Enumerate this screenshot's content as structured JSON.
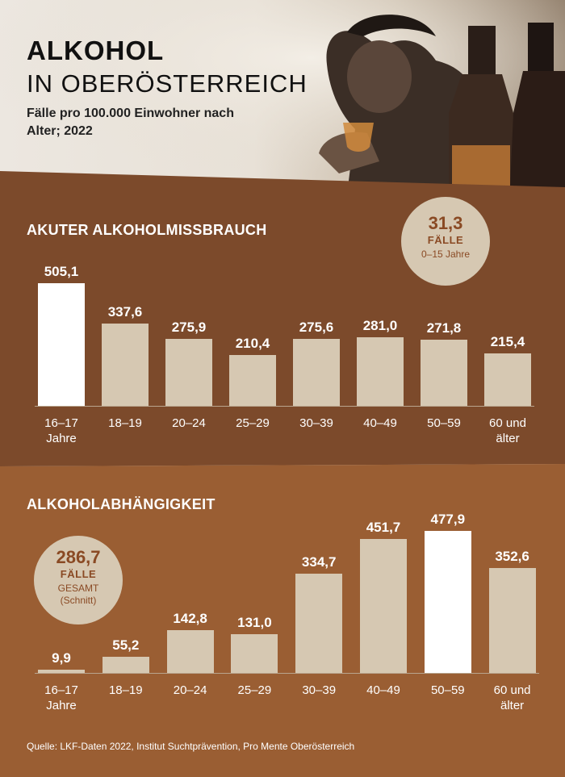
{
  "header": {
    "title_line1": "ALKOHOL",
    "title_line2": "IN OBERÖSTERREICH",
    "subtitle": "Fälle pro 100.000 Einwohner nach Alter; 2022"
  },
  "colors": {
    "band_dark": "#7c4a2b",
    "band_light": "#9a5e33",
    "bar_normal": "#d6c8b2",
    "bar_highlight": "#ffffff",
    "badge_text": "#8a4a24"
  },
  "badge_misuse": {
    "number": "31,3",
    "label": "FÄLLE",
    "note": "0–15 Jahre"
  },
  "badge_dependency": {
    "number": "286,7",
    "label": "FÄLLE",
    "note_line1": "GESAMT",
    "note_line2": "(Schnitt)"
  },
  "chart_data": [
    {
      "type": "bar",
      "title": "AKUTER ALKOHOLMISSBRAUCH",
      "categories": [
        [
          "16–17",
          "Jahre"
        ],
        [
          "18–19",
          ""
        ],
        [
          "20–24",
          ""
        ],
        [
          "25–29",
          ""
        ],
        [
          "30–39",
          ""
        ],
        [
          "40–49",
          ""
        ],
        [
          "50–59",
          ""
        ],
        [
          "60 und",
          "älter"
        ]
      ],
      "values": [
        505.1,
        337.6,
        275.9,
        210.4,
        275.6,
        281.0,
        271.8,
        215.4
      ],
      "value_labels": [
        "505,1",
        "337,6",
        "275,9",
        "210,4",
        "275,6",
        "281,0",
        "271,8",
        "215,4"
      ],
      "highlight_index": 0,
      "ylim": [
        0,
        505.1
      ]
    },
    {
      "type": "bar",
      "title": "ALKOHOLABHÄNGIGKEIT",
      "categories": [
        [
          "16–17",
          "Jahre"
        ],
        [
          "18–19",
          ""
        ],
        [
          "20–24",
          ""
        ],
        [
          "25–29",
          ""
        ],
        [
          "30–39",
          ""
        ],
        [
          "40–49",
          ""
        ],
        [
          "50–59",
          ""
        ],
        [
          "60 und",
          "älter"
        ]
      ],
      "values": [
        9.9,
        55.2,
        142.8,
        131.0,
        334.7,
        451.7,
        477.9,
        352.6
      ],
      "value_labels": [
        "9,9",
        "55,2",
        "142,8",
        "131,0",
        "334,7",
        "451,7",
        "477,9",
        "352,6"
      ],
      "highlight_index": 6,
      "ylim": [
        0,
        477.9
      ]
    }
  ],
  "source": "Quelle: LKF-Daten 2022, Institut Suchtprävention, Pro Mente Oberösterreich"
}
